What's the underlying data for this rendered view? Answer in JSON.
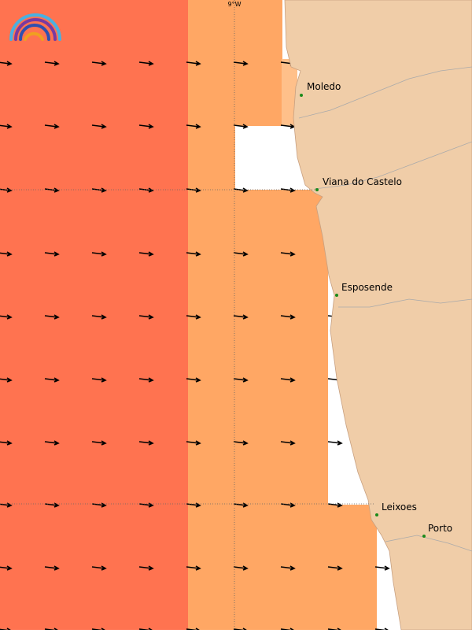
{
  "map": {
    "grid_label": "9°W",
    "places": [
      {
        "label": "Moledo"
      },
      {
        "label": "Viana do Castelo"
      },
      {
        "label": "Esposende"
      },
      {
        "label": "Leixoes"
      },
      {
        "label": "Porto"
      }
    ]
  }
}
